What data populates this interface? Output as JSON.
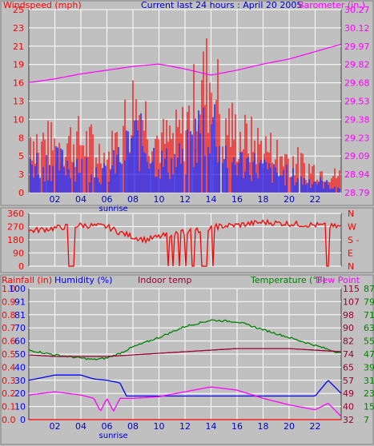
{
  "chart_data": [
    {
      "type": "bar",
      "title": "Current last 24 hours : April 20 2005",
      "left_label": "Windspeed (mph)",
      "right_label": "Barometer (in.)",
      "left_ticks": [
        "0",
        "3",
        "5",
        "8",
        "10",
        "13",
        "16",
        "19",
        "21",
        "23",
        "25"
      ],
      "right_ticks": [
        "28.79",
        "28.94",
        "29.09",
        "29.23",
        "29.38",
        "29.53",
        "29.68",
        "29.82",
        "29.97",
        "30.12",
        "30.27"
      ],
      "x_ticks": [
        "02",
        "04",
        "06",
        "08",
        "10",
        "12",
        "14",
        "16",
        "18",
        "20",
        "22"
      ],
      "x_annotation": "sunrise",
      "ylim_left": [
        0,
        25
      ],
      "ylim_right": [
        28.79,
        30.27
      ],
      "x_range_hours": [
        0,
        24
      ],
      "series": [
        {
          "name": "Windspeed (mph)",
          "color": "#ff0000",
          "hours": [
            0,
            1,
            2,
            3,
            4,
            5,
            6,
            7,
            8,
            9,
            10,
            11,
            12,
            13,
            14,
            15,
            16,
            17,
            18,
            19,
            20,
            21,
            22,
            23.5
          ],
          "values": [
            10,
            9,
            8,
            9,
            9,
            8,
            6,
            10,
            15,
            13,
            9,
            9,
            11,
            17,
            20,
            13,
            10,
            9,
            8,
            7,
            6,
            5,
            4,
            3
          ]
        },
        {
          "name": "Gust",
          "color": "#0000ff",
          "hours": [
            0,
            1,
            2,
            3,
            4,
            5,
            6,
            7,
            8,
            9,
            10,
            11,
            12,
            13,
            14,
            15,
            16,
            17,
            18,
            19,
            20,
            21,
            22,
            23.5
          ],
          "values": [
            5,
            5,
            5,
            5,
            5,
            4,
            3,
            6,
            9,
            8,
            5,
            5,
            6,
            10,
            13,
            7,
            5,
            5,
            4,
            3,
            3,
            2,
            2,
            1
          ]
        },
        {
          "name": "Barometer (in.)",
          "color": "#ff00ff",
          "hours": [
            0,
            2,
            4,
            6,
            8,
            10,
            12,
            14,
            16,
            18,
            20,
            22,
            24
          ],
          "values": [
            29.68,
            29.71,
            29.75,
            29.78,
            29.81,
            29.83,
            29.79,
            29.74,
            29.78,
            29.83,
            29.87,
            29.93,
            29.99
          ]
        }
      ]
    },
    {
      "type": "scatter",
      "left_ticks": [
        "0",
        "90",
        "180",
        "270",
        "360"
      ],
      "right_ticks": [
        "N",
        "E",
        "S",
        "W",
        "N"
      ],
      "x_range_hours": [
        0,
        24
      ],
      "ylim": [
        0,
        360
      ],
      "series": [
        {
          "name": "Wind direction",
          "color": "#ff0000",
          "hours": [
            0,
            1,
            2,
            3,
            4,
            5,
            6,
            7,
            8,
            9,
            10,
            11,
            12,
            13,
            14,
            15,
            16,
            17,
            18,
            19,
            20,
            21,
            22,
            23.5
          ],
          "values": [
            240,
            250,
            260,
            270,
            280,
            275,
            270,
            230,
            200,
            180,
            200,
            220,
            235,
            245,
            265,
            275,
            280,
            290,
            300,
            295,
            290,
            285,
            280,
            270
          ]
        }
      ]
    },
    {
      "type": "line",
      "labels": {
        "rainfall": "Rainfall (in)",
        "humidity": "Humidity (%)",
        "indoor": "Indoor temp",
        "temperature": "Temperature (°F)",
        "dewpoint": "Dew Point"
      },
      "left_ticks_rain": [
        "0.0",
        "0.1",
        "0.2",
        "0.3",
        "0.4",
        "0.5",
        "0.6",
        "0.7",
        "0.8",
        "0.9",
        "1.0"
      ],
      "left_ticks_humidity": [
        "0",
        "10",
        "20",
        "30",
        "40",
        "50",
        "60",
        "70",
        "81",
        "91",
        "100"
      ],
      "right_ticks_1": [
        "32",
        "40",
        "49",
        "57",
        "65",
        "74",
        "82",
        "90",
        "98",
        "107",
        "115"
      ],
      "right_ticks_2": [
        "7",
        "15",
        "23",
        "31",
        "39",
        "47",
        "55",
        "63",
        "71",
        "79",
        "87"
      ],
      "x_ticks": [
        "02",
        "04",
        "06",
        "08",
        "10",
        "12",
        "14",
        "16",
        "18",
        "20",
        "22"
      ],
      "x_annotation": "sunrise",
      "x_range_hours": [
        0,
        24
      ],
      "series": [
        {
          "name": "Temperature (°F)",
          "color": "#008000",
          "axis": "right_1",
          "ylim": [
            32,
            115
          ],
          "hours": [
            0,
            2,
            4,
            5,
            6,
            7,
            8,
            10,
            12,
            14,
            16,
            18,
            20,
            22,
            24
          ],
          "values": [
            76,
            73,
            71,
            70,
            71,
            74,
            78,
            84,
            91,
            95,
            94,
            89,
            84,
            79,
            74
          ]
        },
        {
          "name": "Indoor temp",
          "color": "#990033",
          "axis": "right_1",
          "ylim": [
            32,
            115
          ],
          "hours": [
            0,
            2,
            4,
            6,
            8,
            10,
            12,
            14,
            16,
            18,
            20,
            22,
            24
          ],
          "values": [
            73,
            72,
            72,
            72,
            73,
            74,
            75,
            76,
            77,
            77,
            77,
            76,
            75
          ]
        },
        {
          "name": "Humidity (%)",
          "color": "#0000ff",
          "axis": "left",
          "ylim": [
            0,
            100
          ],
          "hours": [
            0,
            2,
            4,
            5,
            6,
            7,
            7.5,
            8,
            10,
            12,
            14,
            16,
            18,
            20,
            22,
            23,
            24
          ],
          "values": [
            30,
            34,
            34,
            31,
            30,
            28,
            18,
            18,
            18,
            18,
            18,
            18,
            18,
            18,
            18,
            30,
            20
          ]
        },
        {
          "name": "Dew Point",
          "color": "#ff00ff",
          "axis": "right_2",
          "ylim": [
            7,
            87
          ],
          "hours": [
            0,
            2,
            4,
            5,
            5.5,
            6,
            6.5,
            7,
            8,
            10,
            12,
            14,
            16,
            18,
            20,
            22,
            23,
            24
          ],
          "values": [
            22,
            24,
            22,
            20,
            12,
            20,
            12,
            20,
            20,
            21,
            24,
            27,
            25,
            20,
            16,
            13,
            17,
            9
          ]
        },
        {
          "name": "Rainfall (in)",
          "color": "#ff0000",
          "axis": "left_rain",
          "ylim": [
            0,
            1
          ],
          "hours": [
            0,
            24
          ],
          "values": [
            0,
            0
          ]
        }
      ]
    }
  ]
}
